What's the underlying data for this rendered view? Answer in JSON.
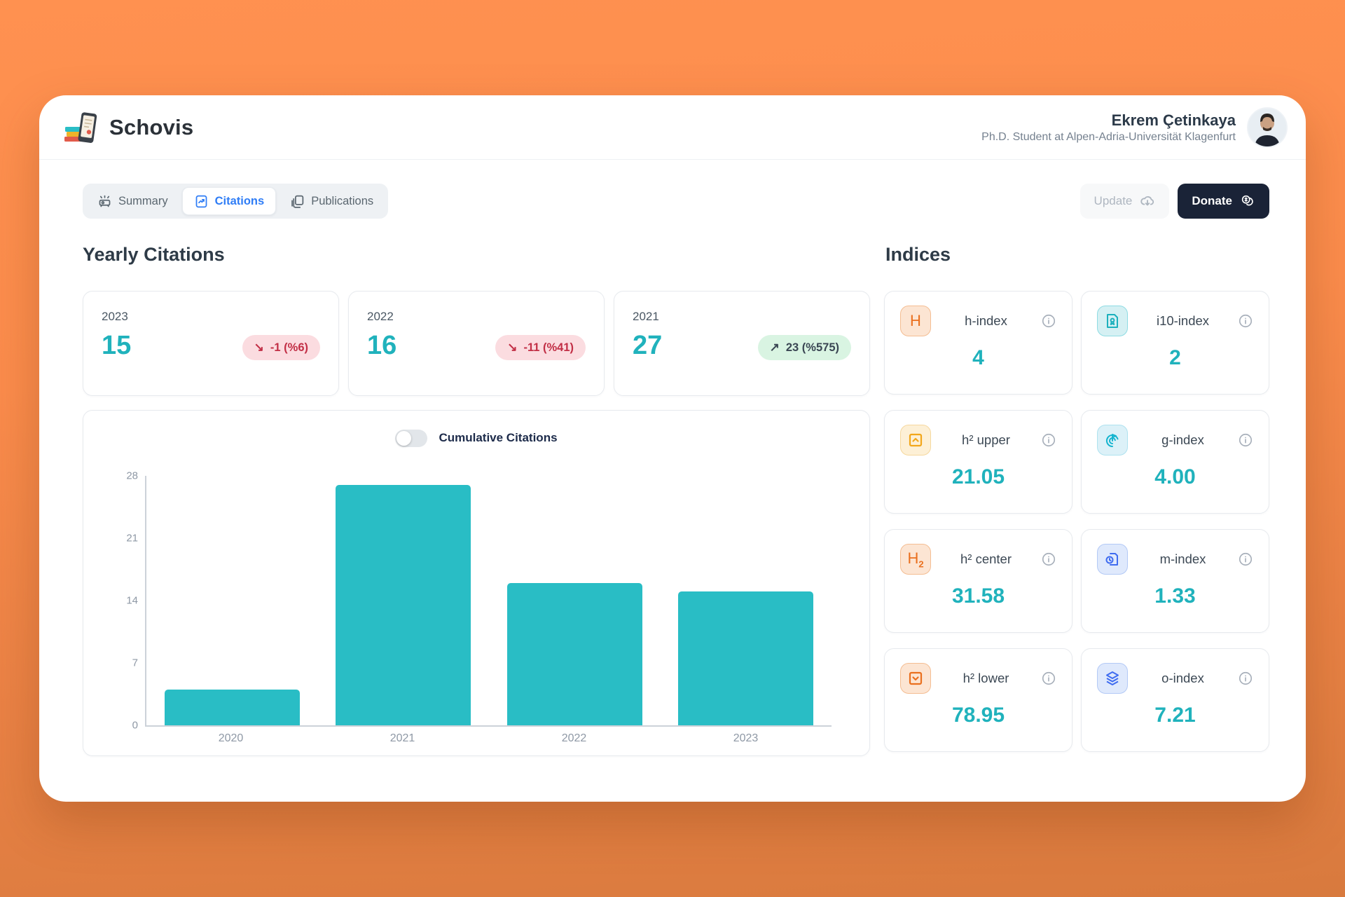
{
  "app": {
    "name": "Schovis"
  },
  "user": {
    "name": "Ekrem Çetinkaya",
    "subtitle": "Ph.D. Student at Alpen-Adria-Universität Klagenfurt"
  },
  "tabs": [
    {
      "label": "Summary",
      "active": false
    },
    {
      "label": "Citations",
      "active": true
    },
    {
      "label": "Publications",
      "active": false
    }
  ],
  "actions": {
    "update_label": "Update",
    "donate_label": "Donate"
  },
  "sections": {
    "yearly_title": "Yearly Citations",
    "indices_title": "Indices"
  },
  "year_cards": [
    {
      "year": "2023",
      "value": "15",
      "delta": "-1 (%6)",
      "direction": "down"
    },
    {
      "year": "2022",
      "value": "16",
      "delta": "-11 (%41)",
      "direction": "down"
    },
    {
      "year": "2021",
      "value": "27",
      "delta": "23 (%575)",
      "direction": "up"
    }
  ],
  "chart": {
    "toggle_label": "Cumulative Citations",
    "toggle_state": "off"
  },
  "chart_data": {
    "type": "bar",
    "categories": [
      "2020",
      "2021",
      "2022",
      "2023"
    ],
    "values": [
      4,
      27,
      16,
      15
    ],
    "title": "Yearly Citations",
    "xlabel": "",
    "ylabel": "",
    "ylim": [
      0,
      28
    ],
    "yticks": [
      0,
      7,
      14,
      21,
      28
    ],
    "bar_color": "#29bdc5",
    "grid": false,
    "legend": null
  },
  "indices": [
    {
      "label": "h-index",
      "value": "4",
      "icon": "h-letter-icon",
      "theme": "orange"
    },
    {
      "label": "i10-index",
      "value": "2",
      "icon": "certificate-doc-icon",
      "theme": "teal"
    },
    {
      "label": "h² upper",
      "value": "21.05",
      "icon": "chevron-up-square-icon",
      "theme": "amber"
    },
    {
      "label": "g-index",
      "value": "4.00",
      "icon": "goal-flag-icon",
      "theme": "cyan"
    },
    {
      "label": "h² center",
      "value": "31.58",
      "icon": "h2-letter-icon",
      "theme": "orange"
    },
    {
      "label": "m-index",
      "value": "1.33",
      "icon": "doc-clock-icon",
      "theme": "blue"
    },
    {
      "label": "h² lower",
      "value": "78.95",
      "icon": "chevron-down-square-icon",
      "theme": "orange"
    },
    {
      "label": "o-index",
      "value": "7.21",
      "icon": "layers-icon",
      "theme": "blue"
    }
  ],
  "colors": {
    "accent_teal": "#20b2bc",
    "bar": "#29bdc5",
    "active_tab": "#2f7df6",
    "donate_bg": "#1a2337",
    "badge_down_bg": "#fbdce0",
    "badge_down_text": "#c22f46",
    "badge_up_bg": "#d9f4e2",
    "background_orange": "#fb8c4c"
  }
}
